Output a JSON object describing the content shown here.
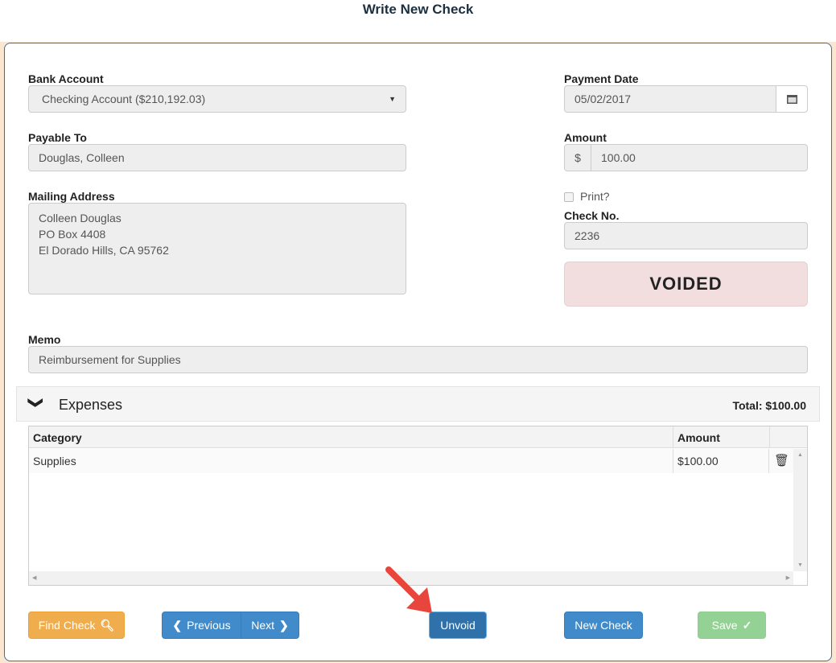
{
  "title": "Write New Check",
  "bank_account": {
    "label": "Bank Account",
    "value": "Checking Account ($210,192.03)"
  },
  "payment_date": {
    "label": "Payment Date",
    "value": "05/02/2017"
  },
  "payable_to": {
    "label": "Payable To",
    "value": "Douglas, Colleen"
  },
  "amount": {
    "label": "Amount",
    "prefix": "$",
    "value": "100.00"
  },
  "mailing_address": {
    "label": "Mailing Address",
    "lines": [
      "Colleen Douglas",
      "PO Box 4408",
      "El Dorado Hills, CA 95762"
    ]
  },
  "print": {
    "label": "Print?",
    "checked": false
  },
  "check_no": {
    "label": "Check No.",
    "value": "2236"
  },
  "status": "VOIDED",
  "memo": {
    "label": "Memo",
    "value": "Reimbursement for Supplies"
  },
  "expenses": {
    "title": "Expenses",
    "total": "Total: $100.00",
    "columns": [
      "Category",
      "Amount"
    ],
    "rows": [
      {
        "category": "Supplies",
        "amount": "$100.00"
      }
    ]
  },
  "buttons": {
    "find": "Find Check",
    "previous": "Previous",
    "next": "Next",
    "unvoid": "Unvoid",
    "new": "New Check",
    "save": "Save"
  },
  "colors": {
    "primary": "#428bca",
    "warning": "#f0ad4e",
    "success": "#5cb85c",
    "voided_bg": "#f2dede",
    "arrow": "#e8463c"
  }
}
